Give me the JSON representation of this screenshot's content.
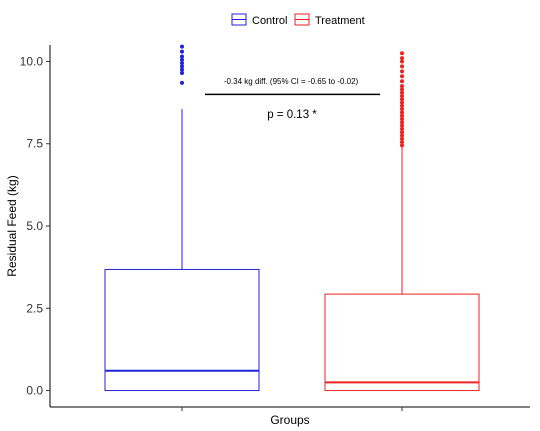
{
  "chart_data": {
    "type": "box",
    "categories": [
      "Control",
      "Treatment"
    ],
    "xlabel": "Groups",
    "ylabel": "Residual Feed (kg)",
    "ylim": [
      -0.5,
      10.5
    ],
    "yticks": [
      0.0,
      2.5,
      5.0,
      7.5,
      10.0
    ],
    "ytick_labels": [
      "0.0",
      "2.5",
      "5.0",
      "7.5",
      "10.0"
    ],
    "grid": false,
    "legend": {
      "position": "top",
      "entries": [
        {
          "label": "Control",
          "color": "#2222dd"
        },
        {
          "label": "Treatment",
          "color": "#ee2222"
        }
      ]
    },
    "series": [
      {
        "name": "Control",
        "color": "#2222dd",
        "min": 0.0,
        "q1": 0.0,
        "median": 0.6,
        "q3": 3.68,
        "whisker_high": 8.55,
        "outliers": [
          9.35,
          9.65,
          9.75,
          9.85,
          9.95,
          10.05,
          10.15,
          10.3,
          10.45
        ]
      },
      {
        "name": "Treatment",
        "color": "#ee2222",
        "min": 0.0,
        "q1": 0.0,
        "median": 0.25,
        "q3": 2.93,
        "whisker_high": 7.4,
        "outliers": [
          7.45,
          7.55,
          7.65,
          7.75,
          7.85,
          7.95,
          8.05,
          8.15,
          8.25,
          8.35,
          8.45,
          8.55,
          8.65,
          8.75,
          8.85,
          8.95,
          9.05,
          9.15,
          9.25,
          9.4,
          9.55,
          9.7,
          9.85,
          10.0,
          10.1,
          10.25
        ]
      }
    ],
    "annotations": {
      "diff_text": "-0.34 kg diff. (95% CI = -0.65 to -0.02)",
      "p_text": "p =  0.13  *",
      "bracket_y": 9.0
    }
  }
}
